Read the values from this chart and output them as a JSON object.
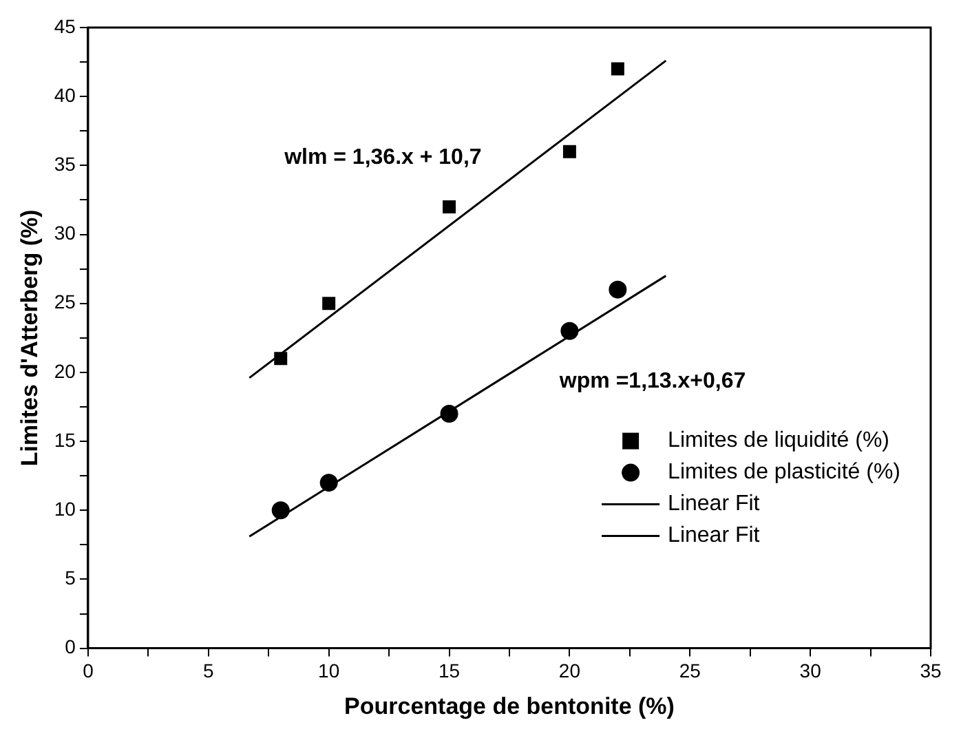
{
  "chart_data": {
    "type": "scatter",
    "xlabel": "Pourcentage de bentonite (%)",
    "ylabel": "Limites d'Atterberg (%)",
    "xlim": [
      0,
      35
    ],
    "ylim": [
      0,
      45
    ],
    "xticks": [
      0,
      {
        "value": 2.5,
        "label": null
      },
      5,
      {
        "value": 7.5,
        "label": null
      },
      10,
      {
        "value": 12.5,
        "label": null
      },
      15,
      {
        "value": 17.5,
        "label": null
      },
      20,
      {
        "value": 22.5,
        "label": null
      },
      25,
      {
        "value": 27.5,
        "label": null
      },
      30,
      {
        "value": 32.5,
        "label": null
      },
      35
    ],
    "yticks": [
      0,
      {
        "value": 2.5,
        "label": null
      },
      5,
      {
        "value": 7.5,
        "label": null
      },
      10,
      {
        "value": 12.5,
        "label": null
      },
      15,
      {
        "value": 17.5,
        "label": null
      },
      20,
      {
        "value": 22.5,
        "label": null
      },
      25,
      {
        "value": 27.5,
        "label": null
      },
      30,
      {
        "value": 32.5,
        "label": null
      },
      35,
      {
        "value": 37.5,
        "label": null
      },
      40,
      {
        "value": 42.5,
        "label": null
      },
      45
    ],
    "grid": false,
    "legend": "bottom right",
    "series": [
      {
        "name": "Limites de liquidité (%)",
        "color": "#000000",
        "marker": "square",
        "x": [
          8,
          10,
          15,
          20,
          22
        ],
        "values": [
          21,
          25,
          32,
          36,
          42
        ]
      },
      {
        "name": "Limites de plasticité (%)",
        "color": "#000000",
        "marker": "circle",
        "x": [
          8,
          10,
          15,
          20,
          22
        ],
        "values": [
          10,
          12,
          17,
          23,
          26
        ]
      },
      {
        "name": "Linear Fit",
        "type": "line",
        "color": "#000000",
        "marker": "none",
        "line_style": "solid",
        "x": [
          6.7,
          24
        ],
        "values": [
          19.6,
          42.6
        ]
      },
      {
        "name": "Linear Fit",
        "type": "line",
        "color": "#000000",
        "marker": "none",
        "line_style": "solid",
        "x": [
          6.7,
          24
        ],
        "values": [
          8.1,
          27
        ]
      }
    ],
    "annotations": [
      "wlm = 1,36.x + 10,7",
      "wpm =1,13.x+0,67"
    ]
  }
}
